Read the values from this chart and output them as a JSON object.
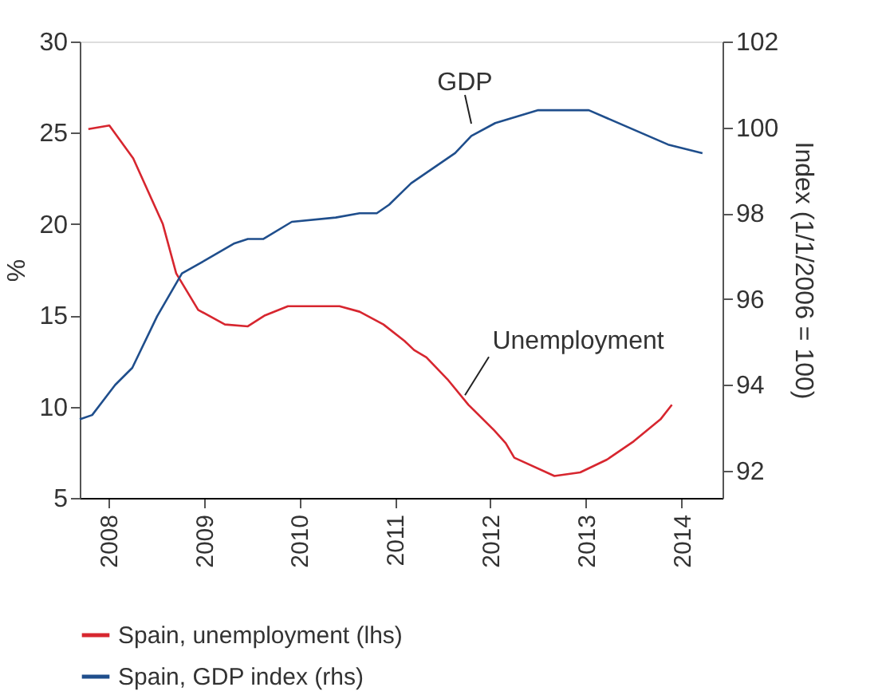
{
  "chart_data": {
    "type": "line",
    "ylabel": "%",
    "y2label": "Index (1/1/2006 = 100)",
    "xlim": [
      2007.7,
      2014.43
    ],
    "xticks": [
      2008,
      2009,
      2010,
      2011,
      2012,
      2013,
      2014
    ],
    "ylim": [
      5,
      30
    ],
    "yticks": [
      5,
      10,
      15,
      20,
      25,
      30
    ],
    "y2lim": [
      91.37,
      102
    ],
    "y2ticks": [
      92,
      94,
      96,
      98,
      100,
      102
    ],
    "grid": false,
    "legend": "bottom",
    "line_style": "solid",
    "marker": "none",
    "series": [
      {
        "name": "Spain, unemployment (lhs)",
        "color": "#d7262f",
        "x": [
          2007.79,
          2008.01,
          2008.26,
          2008.57,
          2008.71,
          2008.94,
          2009.22,
          2009.46,
          2009.64,
          2009.88,
          2010.42,
          2010.63,
          2010.88,
          2011.1,
          2011.2,
          2011.33,
          2011.55,
          2011.77,
          2012.04,
          2012.16,
          2012.25,
          2012.67,
          2012.94,
          2013.22,
          2013.5,
          2013.78,
          2013.9
        ],
        "values": [
          25.2,
          25.4,
          23.6,
          20.0,
          17.3,
          15.3,
          14.5,
          14.4,
          15.0,
          15.5,
          15.5,
          15.2,
          14.5,
          13.6,
          13.1,
          12.7,
          11.5,
          10.1,
          8.7,
          8.0,
          7.2,
          6.2,
          6.4,
          7.1,
          8.1,
          9.3,
          10.1
        ]
      },
      {
        "name": "Spain, GDP index (rhs)",
        "color": "#1f4e8c",
        "axis": "y2",
        "x": [
          2007.7,
          2007.83,
          2008.07,
          2008.25,
          2008.51,
          2008.77,
          2009.01,
          2009.32,
          2009.46,
          2009.62,
          2009.92,
          2010.38,
          2010.63,
          2010.81,
          2010.94,
          2011.17,
          2011.63,
          2011.8,
          2012.05,
          2012.5,
          2012.69,
          2013.03,
          2013.86,
          2014.22
        ],
        "values": [
          93.2,
          93.3,
          94.0,
          94.4,
          95.6,
          96.6,
          96.9,
          97.3,
          97.4,
          97.4,
          97.8,
          97.9,
          98.0,
          98.0,
          98.2,
          98.7,
          99.4,
          99.8,
          100.1,
          100.4,
          100.4,
          100.4,
          99.6,
          99.4
        ]
      }
    ],
    "annotations": [
      {
        "text": "GDP",
        "x": 2011.8,
        "y": 24.8
      },
      {
        "text": "Unemployment",
        "x": 2011.75,
        "y": 10.1
      }
    ]
  }
}
